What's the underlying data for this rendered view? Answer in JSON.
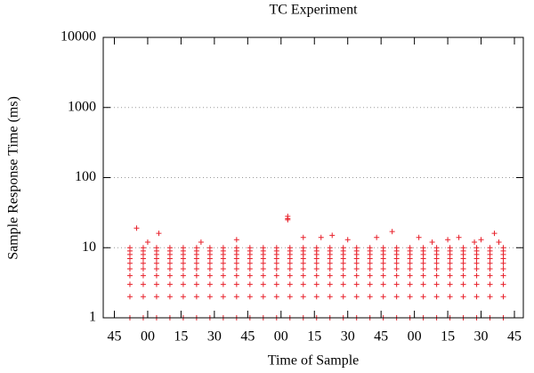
{
  "chart_data": {
    "type": "scatter",
    "title": "TC Experiment",
    "x_label": "Time of Sample",
    "y_label": "Sample Response Time (ms)",
    "color": "#e8202a",
    "log_y": true,
    "grid": true,
    "xlim": [
      40,
      229
    ],
    "xticks": [
      45,
      {
        "value": 60,
        "label": "00"
      },
      {
        "value": 75,
        "label": "15"
      },
      {
        "value": 90,
        "label": "30"
      },
      {
        "value": 105,
        "label": "45"
      },
      {
        "value": 120,
        "label": "00"
      },
      {
        "value": 135,
        "label": "15"
      },
      {
        "value": 150,
        "label": "30"
      },
      {
        "value": 165,
        "label": "45"
      },
      {
        "value": 180,
        "label": "00"
      },
      {
        "value": 195,
        "label": "15"
      },
      {
        "value": 210,
        "label": "30"
      },
      {
        "value": 225,
        "label": "45"
      }
    ],
    "ylim": [
      1,
      10000
    ],
    "yticks": [
      1,
      10,
      100,
      1000,
      10000
    ],
    "x": [
      52,
      52,
      52,
      52,
      52,
      52,
      52,
      52,
      52,
      52,
      58,
      58,
      58,
      58,
      58,
      58,
      58,
      58,
      58,
      58,
      64,
      64,
      64,
      64,
      64,
      64,
      64,
      64,
      64,
      64,
      70,
      70,
      70,
      70,
      70,
      70,
      70,
      70,
      70,
      70,
      76,
      76,
      76,
      76,
      76,
      76,
      76,
      76,
      76,
      76,
      82,
      82,
      82,
      82,
      82,
      82,
      82,
      82,
      82,
      82,
      88,
      88,
      88,
      88,
      88,
      88,
      88,
      88,
      88,
      88,
      94,
      94,
      94,
      94,
      94,
      94,
      94,
      94,
      94,
      94,
      100,
      100,
      100,
      100,
      100,
      100,
      100,
      100,
      100,
      100,
      106,
      106,
      106,
      106,
      106,
      106,
      106,
      106,
      106,
      106,
      112,
      112,
      112,
      112,
      112,
      112,
      112,
      112,
      112,
      112,
      118,
      118,
      118,
      118,
      118,
      118,
      118,
      118,
      118,
      118,
      124,
      124,
      124,
      124,
      124,
      124,
      124,
      124,
      124,
      124,
      130,
      130,
      130,
      130,
      130,
      130,
      130,
      130,
      130,
      130,
      136,
      136,
      136,
      136,
      136,
      136,
      136,
      136,
      136,
      136,
      142,
      142,
      142,
      142,
      142,
      142,
      142,
      142,
      142,
      142,
      148,
      148,
      148,
      148,
      148,
      148,
      148,
      148,
      148,
      148,
      154,
      154,
      154,
      154,
      154,
      154,
      154,
      154,
      154,
      154,
      160,
      160,
      160,
      160,
      160,
      160,
      160,
      160,
      160,
      160,
      166,
      166,
      166,
      166,
      166,
      166,
      166,
      166,
      166,
      166,
      172,
      172,
      172,
      172,
      172,
      172,
      172,
      172,
      172,
      172,
      178,
      178,
      178,
      178,
      178,
      178,
      178,
      178,
      178,
      178,
      184,
      184,
      184,
      184,
      184,
      184,
      184,
      184,
      184,
      184,
      190,
      190,
      190,
      190,
      190,
      190,
      190,
      190,
      190,
      190,
      196,
      196,
      196,
      196,
      196,
      196,
      196,
      196,
      196,
      196,
      202,
      202,
      202,
      202,
      202,
      202,
      202,
      202,
      202,
      202,
      208,
      208,
      208,
      208,
      208,
      208,
      208,
      208,
      208,
      208,
      214,
      214,
      214,
      214,
      214,
      214,
      214,
      214,
      214,
      214,
      220,
      220,
      220,
      220,
      220,
      220,
      220,
      220,
      220,
      220,
      55,
      60,
      65,
      84,
      100,
      123,
      123,
      123,
      130,
      138,
      143,
      150,
      163,
      170,
      182,
      188,
      195,
      200,
      207,
      210,
      216,
      218
    ],
    "values": [
      1,
      2,
      3,
      4,
      5,
      6,
      7,
      8,
      9,
      10,
      1,
      2,
      3,
      4,
      5,
      6,
      7,
      8,
      9,
      10,
      1,
      2,
      3,
      4,
      5,
      6,
      7,
      8,
      9,
      10,
      1,
      2,
      3,
      4,
      5,
      6,
      7,
      8,
      9,
      10,
      1,
      2,
      3,
      4,
      5,
      6,
      7,
      8,
      9,
      10,
      1,
      2,
      3,
      4,
      5,
      6,
      7,
      8,
      9,
      10,
      1,
      2,
      3,
      4,
      5,
      6,
      7,
      8,
      9,
      10,
      1,
      2,
      3,
      4,
      5,
      6,
      7,
      8,
      9,
      10,
      1,
      2,
      3,
      4,
      5,
      6,
      7,
      8,
      9,
      10,
      1,
      2,
      3,
      4,
      5,
      6,
      7,
      8,
      9,
      10,
      1,
      2,
      3,
      4,
      5,
      6,
      7,
      8,
      9,
      10,
      1,
      2,
      3,
      4,
      5,
      6,
      7,
      8,
      9,
      10,
      1,
      2,
      3,
      4,
      5,
      6,
      7,
      8,
      9,
      10,
      1,
      2,
      3,
      4,
      5,
      6,
      7,
      8,
      9,
      10,
      1,
      2,
      3,
      4,
      5,
      6,
      7,
      8,
      9,
      10,
      1,
      2,
      3,
      4,
      5,
      6,
      7,
      8,
      9,
      10,
      1,
      2,
      3,
      4,
      5,
      6,
      7,
      8,
      9,
      10,
      1,
      2,
      3,
      4,
      5,
      6,
      7,
      8,
      9,
      10,
      1,
      2,
      3,
      4,
      5,
      6,
      7,
      8,
      9,
      10,
      1,
      2,
      3,
      4,
      5,
      6,
      7,
      8,
      9,
      10,
      1,
      2,
      3,
      4,
      5,
      6,
      7,
      8,
      9,
      10,
      1,
      2,
      3,
      4,
      5,
      6,
      7,
      8,
      9,
      10,
      1,
      2,
      3,
      4,
      5,
      6,
      7,
      8,
      9,
      10,
      1,
      2,
      3,
      4,
      5,
      6,
      7,
      8,
      9,
      10,
      1,
      2,
      3,
      4,
      5,
      6,
      7,
      8,
      9,
      10,
      1,
      2,
      3,
      4,
      5,
      6,
      7,
      8,
      9,
      10,
      1,
      2,
      3,
      4,
      5,
      6,
      7,
      8,
      9,
      10,
      1,
      2,
      3,
      4,
      5,
      6,
      7,
      8,
      9,
      10,
      1,
      2,
      3,
      4,
      5,
      6,
      7,
      8,
      9,
      10,
      19,
      12,
      16,
      12,
      13,
      28,
      26,
      25,
      14,
      14,
      15,
      13,
      14,
      17,
      14,
      12,
      13,
      14,
      12,
      13,
      16,
      12
    ]
  }
}
